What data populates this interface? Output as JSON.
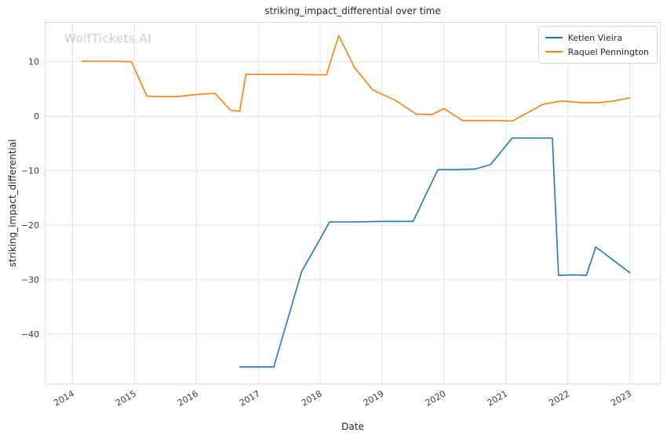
{
  "watermark": "WolfTickets.AI",
  "colors": {
    "grid": "#e2e2e2",
    "spine": "#d9d9d9",
    "tick_text": "#3a3a3a",
    "title_text": "#262626",
    "watermark_text": "#cccccc",
    "background": "#ffffff"
  },
  "chart_data": {
    "type": "line",
    "title": "striking_impact_differential over time",
    "xlabel": "Date",
    "ylabel": "striking_impact_differential",
    "grid": true,
    "legend_position": "upper right",
    "xlim": [
      2013.55,
      2023.5
    ],
    "ylim": [
      -49.2,
      17.3
    ],
    "x_ticks": [
      {
        "v": 2014,
        "label": "2014"
      },
      {
        "v": 2015,
        "label": "2015"
      },
      {
        "v": 2016,
        "label": "2016"
      },
      {
        "v": 2017,
        "label": "2017"
      },
      {
        "v": 2018,
        "label": "2018"
      },
      {
        "v": 2019,
        "label": "2019"
      },
      {
        "v": 2020,
        "label": "2020"
      },
      {
        "v": 2021,
        "label": "2021"
      },
      {
        "v": 2022,
        "label": "2022"
      },
      {
        "v": 2023,
        "label": "2023"
      }
    ],
    "y_ticks": [
      {
        "v": 10,
        "label": "10"
      },
      {
        "v": 0,
        "label": "0"
      },
      {
        "v": -10,
        "label": "−10"
      },
      {
        "v": -20,
        "label": "−20"
      },
      {
        "v": -30,
        "label": "−30"
      },
      {
        "v": -40,
        "label": "−40"
      }
    ],
    "series": [
      {
        "name": "Ketlen Vieira",
        "color": "#1f77b4",
        "points": [
          [
            2016.7,
            -46.0
          ],
          [
            2017.25,
            -46.0
          ],
          [
            2017.7,
            -28.5
          ],
          [
            2018.0,
            -22.5
          ],
          [
            2018.15,
            -19.4
          ],
          [
            2018.5,
            -19.4
          ],
          [
            2019.0,
            -19.3
          ],
          [
            2019.5,
            -19.3
          ],
          [
            2019.9,
            -9.8
          ],
          [
            2020.2,
            -9.8
          ],
          [
            2020.5,
            -9.7
          ],
          [
            2020.75,
            -8.9
          ],
          [
            2021.1,
            -4.0
          ],
          [
            2021.45,
            -4.0
          ],
          [
            2021.75,
            -4.0
          ],
          [
            2021.85,
            -29.2
          ],
          [
            2022.1,
            -29.1
          ],
          [
            2022.3,
            -29.2
          ],
          [
            2022.45,
            -24.0
          ],
          [
            2023.0,
            -28.7
          ]
        ]
      },
      {
        "name": "Raquel Pennington",
        "color": "#ff7f0e",
        "points": [
          [
            2014.15,
            10.1
          ],
          [
            2014.6,
            10.1
          ],
          [
            2014.95,
            10.0
          ],
          [
            2015.2,
            3.7
          ],
          [
            2015.45,
            3.6
          ],
          [
            2015.7,
            3.6
          ],
          [
            2016.0,
            4.0
          ],
          [
            2016.3,
            4.2
          ],
          [
            2016.55,
            1.1
          ],
          [
            2016.7,
            0.9
          ],
          [
            2016.8,
            7.7
          ],
          [
            2017.2,
            7.7
          ],
          [
            2017.6,
            7.7
          ],
          [
            2017.95,
            7.6
          ],
          [
            2018.1,
            7.6
          ],
          [
            2018.3,
            14.8
          ],
          [
            2018.55,
            9.0
          ],
          [
            2018.85,
            4.8
          ],
          [
            2019.2,
            3.0
          ],
          [
            2019.55,
            0.4
          ],
          [
            2019.8,
            0.3
          ],
          [
            2020.0,
            1.4
          ],
          [
            2020.3,
            -0.8
          ],
          [
            2020.6,
            -0.8
          ],
          [
            2020.9,
            -0.8
          ],
          [
            2021.1,
            -0.9
          ],
          [
            2021.6,
            2.2
          ],
          [
            2021.9,
            2.8
          ],
          [
            2022.2,
            2.5
          ],
          [
            2022.5,
            2.5
          ],
          [
            2022.75,
            2.8
          ],
          [
            2023.0,
            3.4
          ]
        ]
      }
    ]
  }
}
